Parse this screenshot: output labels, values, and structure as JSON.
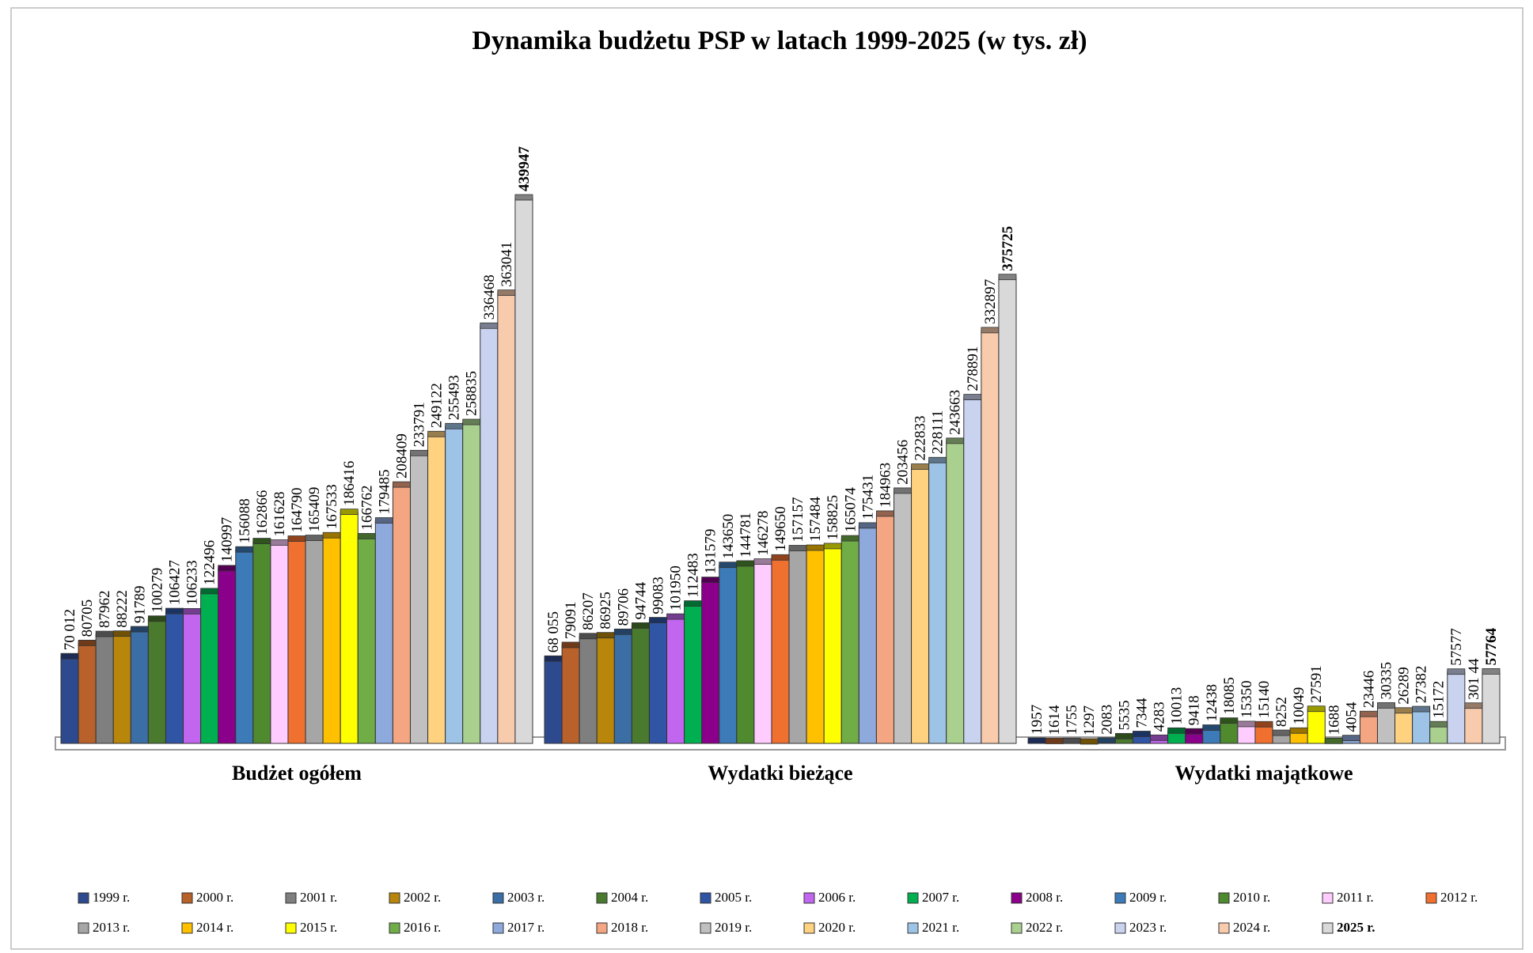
{
  "chart_data": {
    "type": "bar",
    "title": "Dynamika budżetu PSP w latach 1999-2025 (w tys. zł)",
    "categories": [
      "Budżet ogółem",
      "Wydatki bieżące",
      "Wydatki majątkowe"
    ],
    "series": [
      {
        "name": "1999 r.",
        "color": "#2e4a8f",
        "values": [
          70012,
          68055,
          1957
        ],
        "value_labels": [
          "70 012",
          "68 055",
          "1957"
        ]
      },
      {
        "name": "2000 r.",
        "color": "#b8612a",
        "values": [
          80705,
          79091,
          1614
        ]
      },
      {
        "name": "2001 r.",
        "color": "#7f7f7f",
        "values": [
          87962,
          86207,
          1755
        ]
      },
      {
        "name": "2002 r.",
        "color": "#b8860b",
        "values": [
          88222,
          86925,
          1297
        ]
      },
      {
        "name": "2003 r.",
        "color": "#3a6ea5",
        "values": [
          91789,
          89706,
          2083
        ]
      },
      {
        "name": "2004 r.",
        "color": "#4a7a2e",
        "values": [
          100279,
          94744,
          5535
        ]
      },
      {
        "name": "2005 r.",
        "color": "#2f55a4",
        "values": [
          106427,
          99083,
          7344
        ]
      },
      {
        "name": "2006 r.",
        "color": "#c266f0",
        "values": [
          106233,
          101950,
          4283
        ]
      },
      {
        "name": "2007 r.",
        "color": "#00b050",
        "values": [
          122496,
          112483,
          10013
        ]
      },
      {
        "name": "2008 r.",
        "color": "#8b008b",
        "values": [
          140997,
          131579,
          9418
        ]
      },
      {
        "name": "2009 r.",
        "color": "#3d7ab8",
        "values": [
          156088,
          143650,
          12438
        ]
      },
      {
        "name": "2010 r.",
        "color": "#4f8a2f",
        "values": [
          162866,
          144781,
          18085
        ]
      },
      {
        "name": "2011 r.",
        "color": "#ffccff",
        "values": [
          161628,
          146278,
          15350
        ]
      },
      {
        "name": "2012 r.",
        "color": "#f07030",
        "values": [
          164790,
          149650,
          15140
        ]
      },
      {
        "name": "2013 r.",
        "color": "#a6a6a6",
        "values": [
          165409,
          157157,
          8252
        ]
      },
      {
        "name": "2014 r.",
        "color": "#ffc000",
        "values": [
          167533,
          157484,
          10049
        ]
      },
      {
        "name": "2015 r.",
        "color": "#ffff00",
        "values": [
          186416,
          158825,
          27591
        ]
      },
      {
        "name": "2016 r.",
        "color": "#70ad47",
        "values": [
          166762,
          165074,
          1688
        ]
      },
      {
        "name": "2017 r.",
        "color": "#8ea9db",
        "values": [
          179485,
          175431,
          4054
        ]
      },
      {
        "name": "2018 r.",
        "color": "#f4a582",
        "values": [
          208409,
          184963,
          23446
        ]
      },
      {
        "name": "2019 r.",
        "color": "#c0c0c0",
        "values": [
          233791,
          203456,
          30335
        ]
      },
      {
        "name": "2020 r.",
        "color": "#ffd280",
        "values": [
          249122,
          222833,
          26289
        ]
      },
      {
        "name": "2021 r.",
        "color": "#9dc3e6",
        "values": [
          255493,
          228111,
          27382
        ]
      },
      {
        "name": "2022 r.",
        "color": "#a9d08e",
        "values": [
          258835,
          243663,
          15172
        ]
      },
      {
        "name": "2023 r.",
        "color": "#c9d3f0",
        "values": [
          336468,
          278891,
          57577
        ]
      },
      {
        "name": "2024 r.",
        "color": "#f8cbad",
        "values": [
          363041,
          332897,
          30144
        ],
        "value_labels": [
          "363041",
          "332897",
          "301 44"
        ]
      },
      {
        "name": "2025 r.",
        "color": "#d9d9d9",
        "values": [
          439947,
          375725,
          57764
        ]
      }
    ]
  }
}
